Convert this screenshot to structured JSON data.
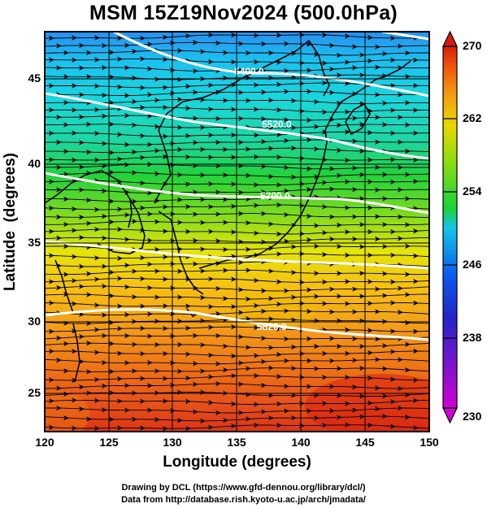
{
  "title": "MSM 15Z19Nov2024 (500.0hPa)",
  "x_axis_label": "Longitude (degrees)",
  "y_axis_label": "Latitude  (degrees)",
  "x_ticks": [
    "120",
    "125",
    "130",
    "135",
    "140",
    "145",
    "150"
  ],
  "y_ticks": [
    "45",
    "40",
    "35",
    "30",
    "25"
  ],
  "colorbar": {
    "ticks": [
      "270",
      "262",
      "254",
      "246",
      "238",
      "230"
    ],
    "min": 230,
    "max": 270,
    "colors": [
      "#d400d4",
      "#3a18c8",
      "#0a5cf0",
      "#14c8e6",
      "#18d23c",
      "#c8e600",
      "#f5b800",
      "#ee5a0c",
      "#d81c0c"
    ]
  },
  "contours": [
    {
      "label": "5400.0"
    },
    {
      "label": "5520.0"
    },
    {
      "label": "5700.0"
    },
    {
      "label": "5820.0"
    },
    {
      "label": "5880.0"
    }
  ],
  "credits": [
    "Drawing by DCL (https://www.gfd-dennou.org/library/dcl/)",
    "Data from http://database.rish.kyoto-u.ac.jp/arch/jmadata/"
  ]
}
